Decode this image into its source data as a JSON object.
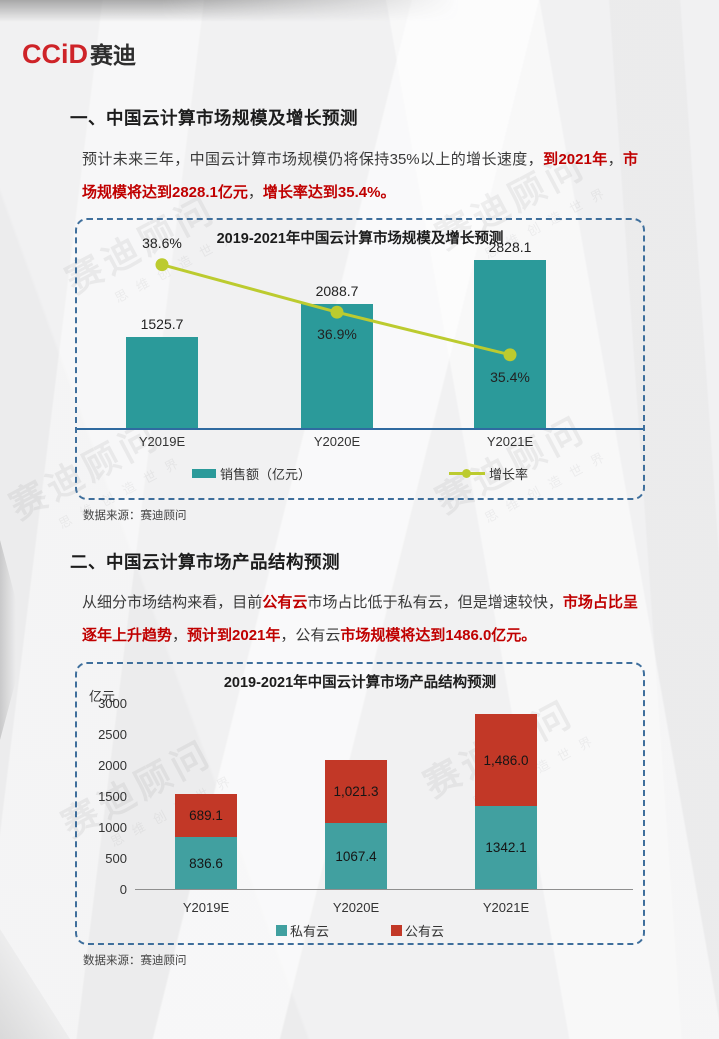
{
  "logo": {
    "latin": "CCiD",
    "cn": "赛迪"
  },
  "watermark": {
    "main": "赛迪顾问",
    "sub": "思维创造世界"
  },
  "colors": {
    "bar_teal_1": "#2B9A9A",
    "bar_teal_2": "#41A0A0",
    "bar_red": "#C23827",
    "growth_line": "#BCCB2F",
    "panel_border": "#3F6F9C",
    "axis_blue": "#2F6AA0",
    "red_text": "#C00000",
    "logo_red": "#CE2328"
  },
  "sections": [
    {
      "heading": "一、中国云计算市场规模及增长预测",
      "paragraph": [
        {
          "text": "预计未来三年，中国云计算市场规模仍将保持35%以上的增长速度，",
          "em": false
        },
        {
          "text": "到2021年",
          "em": true
        },
        {
          "text": "，",
          "em": false
        },
        {
          "text": "市场规模将达到2828.1亿元",
          "em": true
        },
        {
          "text": "，",
          "em": false
        },
        {
          "text": "增长率达到35.4%。",
          "em": true
        }
      ]
    },
    {
      "heading": "二、中国云计算市场产品结构预测",
      "paragraph": [
        {
          "text": "从细分市场结构来看，目前",
          "em": false
        },
        {
          "text": "公有云",
          "em": true
        },
        {
          "text": "市场占比低于私有云，但是增速较快，",
          "em": false
        },
        {
          "text": "市场占比呈逐年上升趋势",
          "em": true
        },
        {
          "text": "，",
          "em": false
        },
        {
          "text": "预计到2021年",
          "em": true
        },
        {
          "text": "，公有云",
          "em": false
        },
        {
          "text": "市场规模将达到1486.0亿元。",
          "em": true
        }
      ]
    }
  ],
  "chart_data": [
    {
      "type": "bar",
      "subtype": "bar-line-combo",
      "title": "2019-2021年中国云计算市场规模及增长预测",
      "categories": [
        "Y2019E",
        "Y2020E",
        "Y2021E"
      ],
      "series": [
        {
          "name": "销售额（亿元）",
          "kind": "bar",
          "values": [
            1525.7,
            2088.7,
            2828.1
          ],
          "labels": [
            "1525.7",
            "2088.7",
            "2828.1"
          ],
          "color": "#2B9A9A"
        },
        {
          "name": "增长率",
          "kind": "line",
          "values": [
            38.6,
            36.9,
            35.4
          ],
          "labels": [
            "38.6%",
            "36.9%",
            "35.4%"
          ],
          "color": "#BCCB2F"
        }
      ],
      "legend_position": "bottom",
      "grid": false,
      "source": "数据来源：赛迪顾问"
    },
    {
      "type": "bar",
      "subtype": "stacked-bar",
      "title": "2019-2021年中国云计算市场产品结构预测",
      "ylabel": "亿元",
      "ylim": [
        0,
        3000
      ],
      "y_ticks": [
        3000,
        2500,
        2000,
        1500,
        1000,
        500,
        0
      ],
      "categories": [
        "Y2019E",
        "Y2020E",
        "Y2021E"
      ],
      "series": [
        {
          "name": "私有云",
          "values": [
            836.6,
            1067.4,
            1342.1
          ],
          "labels": [
            "836.6",
            "1067.4",
            "1342.1"
          ],
          "color": "#41A0A0"
        },
        {
          "name": "公有云",
          "values": [
            689.1,
            1021.3,
            1486.0
          ],
          "labels": [
            "689.1",
            "1,021.3",
            "1,486.0"
          ],
          "color": "#C23827"
        }
      ],
      "legend_position": "bottom",
      "grid": false,
      "source": "数据来源：赛迪顾问"
    }
  ]
}
